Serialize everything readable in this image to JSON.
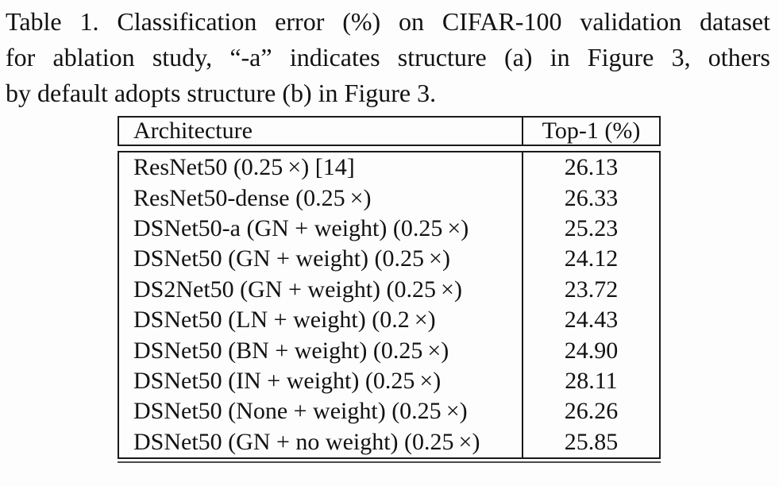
{
  "page": {
    "background": "#fdfdfd",
    "text_color": "#121212",
    "border_color": "#1a1a1a"
  },
  "caption": {
    "label": "Table 1.",
    "full_text": "Table 1. Classification error (%) on CIFAR-100 validation dataset for ablation study, “-a” indicates structure (a) in Figure 3, others by default adopts structure (b) in Figure 3.",
    "lines": [
      "Table 1. Classification error (%) on CIFAR-100 validation dataset",
      "for ablation study, “-a” indicates structure (a) in Figure 3, others",
      "by default adopts structure (b) in Figure 3."
    ]
  },
  "table": {
    "columns": [
      "Architecture",
      "Top-1 (%)"
    ],
    "rows": [
      {
        "architecture": "ResNet50 (0.25 ×) [14]",
        "top1": "26.13"
      },
      {
        "architecture": "ResNet50-dense (0.25 ×)",
        "top1": "26.33"
      },
      {
        "architecture": "DSNet50-a (GN + weight) (0.25 ×)",
        "top1": "25.23"
      },
      {
        "architecture": "DSNet50 (GN + weight) (0.25 ×)",
        "top1": "24.12"
      },
      {
        "architecture": "DS2Net50 (GN + weight) (0.25 ×)",
        "top1": "23.72"
      },
      {
        "architecture": "DSNet50 (LN + weight) (0.2 ×)",
        "top1": "24.43"
      },
      {
        "architecture": "DSNet50 (BN + weight) (0.25 ×)",
        "top1": "24.90"
      },
      {
        "architecture": "DSNet50 (IN + weight) (0.25 ×)",
        "top1": "28.11"
      },
      {
        "architecture": "DSNet50 (None + weight) (0.25 ×)",
        "top1": "26.26"
      },
      {
        "architecture": "DSNet50 (GN + no weight) (0.25 ×)",
        "top1": "25.85"
      }
    ]
  }
}
